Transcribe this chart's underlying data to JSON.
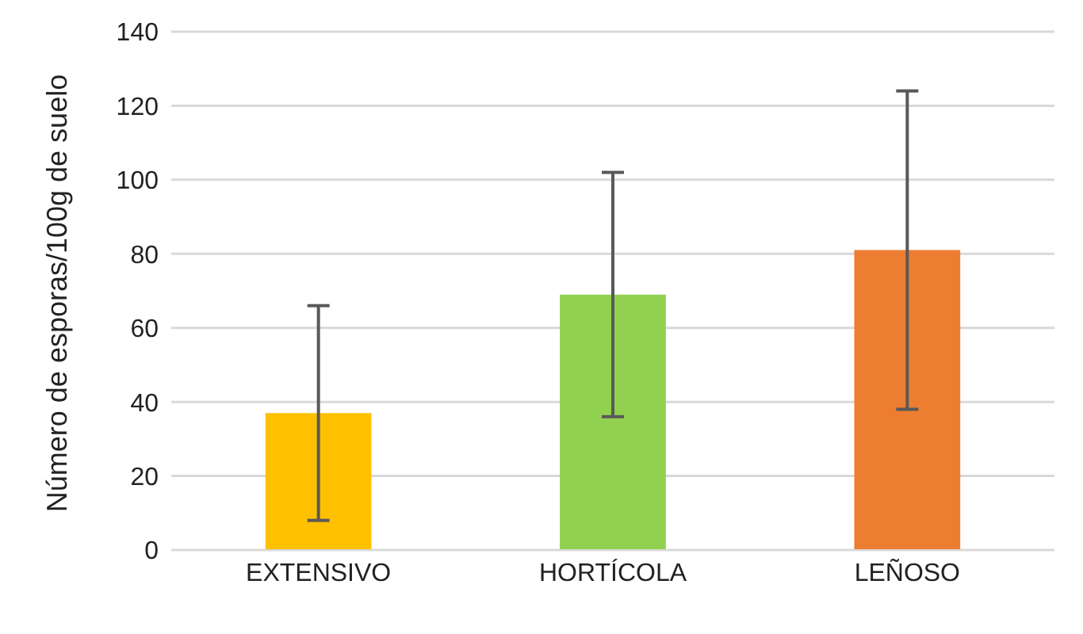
{
  "chart_data": {
    "type": "bar",
    "ylabel": "Número de esporas/100g de suelo",
    "categories": [
      "EXTENSIVO",
      "HORTÍCOLA",
      "LEÑOSO"
    ],
    "values": [
      37,
      69,
      81
    ],
    "colors": [
      "#ffc000",
      "#92d050",
      "#ed7d31"
    ],
    "errors": [
      29,
      33,
      43
    ],
    "ylim": [
      0,
      140
    ],
    "yticks": [
      0,
      20,
      40,
      60,
      80,
      100,
      120,
      140
    ],
    "grid": "y"
  }
}
